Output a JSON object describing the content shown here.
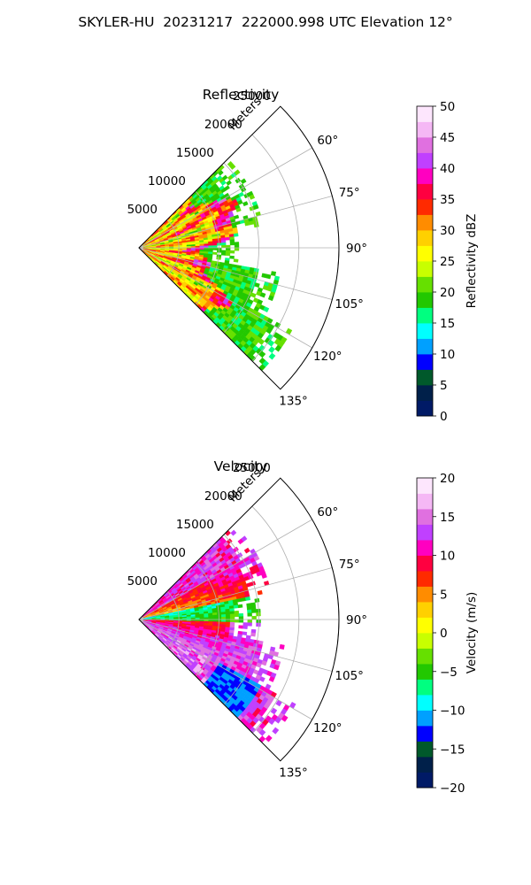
{
  "figure": {
    "title": "SKYLER-HU  20231217  222000.998 UTC Elevation 12°"
  },
  "chart_data": [
    {
      "type": "heatmap",
      "projection": "polar-sector",
      "title": "Reflectivity",
      "radial_label": "Meters",
      "radial_ticks": [
        "5000",
        "10000",
        "15000",
        "20000",
        "25000"
      ],
      "radial_max": 25000,
      "angle_ticks": [
        "60°",
        "75°",
        "90°",
        "105°",
        "120°",
        "135°"
      ],
      "theta_range": [
        45,
        135
      ],
      "colorbar": {
        "label": "Reflectivity dBZ",
        "min": 0,
        "max": 50,
        "ticks": [
          "0",
          "5",
          "10",
          "15",
          "20",
          "25",
          "30",
          "35",
          "40",
          "45",
          "50"
        ]
      },
      "colormap": [
        "#001a66",
        "#00204a",
        "#00592b",
        "#0000ff",
        "#00a0ff",
        "#00ffff",
        "#00ff80",
        "#22c800",
        "#66e000",
        "#c8ff00",
        "#ffff00",
        "#ffd000",
        "#ff8c00",
        "#ff2a00",
        "#ff0040",
        "#ff00c0",
        "#c040ff",
        "#e070e0",
        "#f5b8f5",
        "#fde6fd"
      ],
      "grid": true
    },
    {
      "type": "heatmap",
      "projection": "polar-sector",
      "title": "Velocity",
      "radial_label": "Meters",
      "radial_ticks": [
        "5000",
        "10000",
        "15000",
        "20000",
        "25000"
      ],
      "radial_max": 25000,
      "angle_ticks": [
        "60°",
        "75°",
        "90°",
        "105°",
        "120°",
        "135°"
      ],
      "theta_range": [
        45,
        135
      ],
      "colorbar": {
        "label": "Velocity (m/s)",
        "min": -20,
        "max": 20,
        "ticks": [
          "−20",
          "−15",
          "−10",
          "−5",
          "0",
          "5",
          "10",
          "15",
          "20"
        ]
      },
      "colormap": [
        "#001a66",
        "#00204a",
        "#00592b",
        "#0000ff",
        "#00a0ff",
        "#00ffff",
        "#00ff80",
        "#22c800",
        "#66e000",
        "#c8ff00",
        "#ffff00",
        "#ffd000",
        "#ff8c00",
        "#ff2a00",
        "#ff0040",
        "#ff00c0",
        "#c040ff",
        "#e070e0",
        "#f5b8f5",
        "#fde6fd"
      ],
      "grid": true
    }
  ]
}
